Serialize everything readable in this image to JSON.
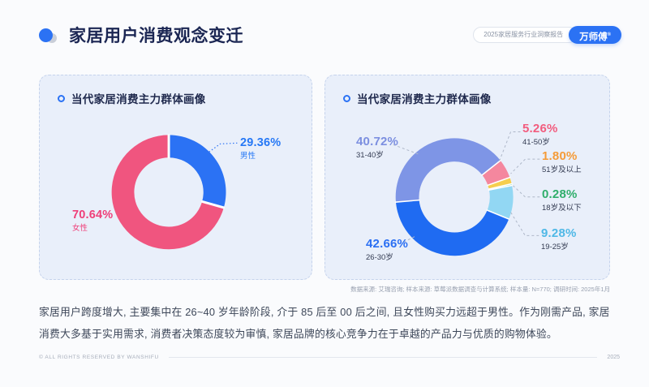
{
  "header": {
    "title": "家居用户消费观念变迁",
    "report_badge": "2025家居服务行业洞察报告",
    "brand": "万师傅",
    "brand_mark": "®"
  },
  "cards": {
    "left": {
      "title": "当代家居消费主力群体画像"
    },
    "right": {
      "title": "当代家居消费主力群体画像"
    }
  },
  "chart_data": [
    {
      "type": "pie",
      "title": "当代家居消费主力群体画像",
      "donut": true,
      "start_angle": 0,
      "unit": "%",
      "slices": [
        {
          "label": "男性",
          "value": 29.36,
          "pct": "29.36%",
          "color": "#2b72f4",
          "label_color": "#2678f5",
          "name_color": "#2678f5",
          "leader_color": "#2b72f4"
        },
        {
          "label": "女性",
          "value": 70.64,
          "pct": "70.64%",
          "color": "#f0557f",
          "label_color": "#ef3e78",
          "name_color": "#ef3e78",
          "leader_color": "#f0557f"
        }
      ]
    },
    {
      "type": "pie",
      "title": "当代家居消费主力群体画像",
      "donut": true,
      "start_angle": 265,
      "unit": "%",
      "slices": [
        {
          "label": "31-40岁",
          "value": 40.72,
          "pct": "40.72%",
          "color": "#7e95e6",
          "label_color": "#7c8fe0",
          "name_color": "#333b52",
          "leader_color": "#aeb7c8"
        },
        {
          "label": "41-50岁",
          "value": 5.26,
          "pct": "5.26%",
          "color": "#f4879e",
          "label_color": "#f25c7e",
          "name_color": "#333b52",
          "leader_color": "#aeb7c8"
        },
        {
          "label": "51岁及以上",
          "value": 1.8,
          "pct": "1.80%",
          "color": "#f5ce4e",
          "label_color": "#f59b38",
          "name_color": "#333b52",
          "leader_color": "#aeb7c8"
        },
        {
          "label": "18岁及以下",
          "value": 0.28,
          "pct": "0.28%",
          "color": "#4fc98e",
          "label_color": "#2fae6b",
          "name_color": "#333b52",
          "leader_color": "#aeb7c8"
        },
        {
          "label": "19-25岁",
          "value": 9.28,
          "pct": "9.28%",
          "color": "#92d7f3",
          "label_color": "#4fb8e6",
          "name_color": "#333b52",
          "leader_color": "#aeb7c8"
        },
        {
          "label": "26-30岁",
          "value": 42.66,
          "pct": "42.66%",
          "color": "#1f6bf2",
          "label_color": "#2b6ff3",
          "name_color": "#333b52",
          "leader_color": "#aeb7c8"
        }
      ]
    }
  ],
  "source_note": "数据来源: 艾瑞咨询; 样本来源: 草莓派数据调查与计算系统; 样本量: N=770; 调研时间: 2025年1月",
  "summary": "家居用户跨度增大, 主要集中在 26~40 岁年龄阶段, 介于 85 后至 00 后之间, 且女性购买力远超于男性。作为刚需产品, 家居消费大多基于实用需求, 消费者决策态度较为审慎, 家居品牌的核心竞争力在于卓越的产品力与优质的购物体验。",
  "footer": {
    "copyright": "© ALL RIGHTS RESERVED BY WANSHIFU",
    "year": "2025"
  }
}
